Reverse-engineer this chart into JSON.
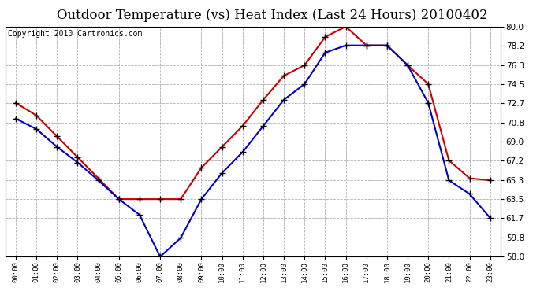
{
  "title": "Outdoor Temperature (vs) Heat Index (Last 24 Hours) 20100402",
  "copyright": "Copyright 2010 Cartronics.com",
  "hours": [
    "00:00",
    "01:00",
    "02:00",
    "03:00",
    "04:00",
    "05:00",
    "06:00",
    "07:00",
    "08:00",
    "09:00",
    "10:00",
    "11:00",
    "12:00",
    "13:00",
    "14:00",
    "15:00",
    "16:00",
    "17:00",
    "18:00",
    "19:00",
    "20:00",
    "21:00",
    "22:00",
    "23:00"
  ],
  "temp": [
    71.2,
    70.2,
    68.5,
    67.0,
    65.3,
    63.5,
    62.0,
    58.0,
    59.8,
    63.5,
    66.0,
    68.0,
    70.5,
    73.0,
    74.5,
    77.5,
    78.2,
    78.2,
    78.2,
    76.3,
    72.7,
    65.3,
    64.0,
    61.7
  ],
  "heat_index": [
    72.7,
    71.5,
    69.5,
    67.5,
    65.5,
    63.5,
    63.5,
    63.5,
    63.5,
    66.5,
    68.5,
    70.5,
    73.0,
    75.3,
    76.3,
    79.0,
    80.0,
    78.2,
    78.2,
    76.3,
    74.5,
    67.2,
    65.5,
    65.3
  ],
  "temp_color": "#0000cc",
  "heat_color": "#cc0000",
  "bg_color": "#ffffff",
  "grid_color": "#b0b0b0",
  "ylim_min": 58.0,
  "ylim_max": 80.0,
  "yticks": [
    58.0,
    59.8,
    61.7,
    63.5,
    65.3,
    67.2,
    69.0,
    70.8,
    72.7,
    74.5,
    76.3,
    78.2,
    80.0
  ],
  "title_fontsize": 12,
  "copyright_fontsize": 7
}
